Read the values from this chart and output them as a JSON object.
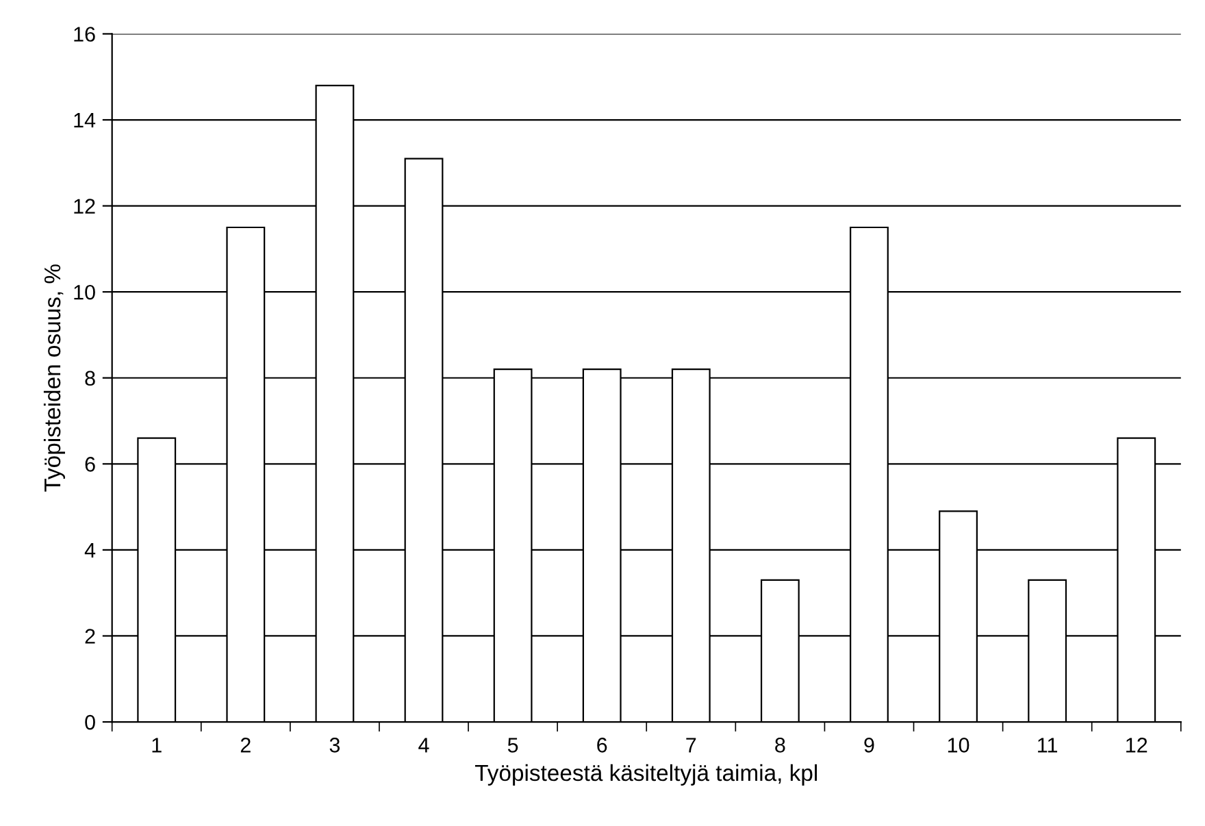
{
  "chart_data": {
    "type": "bar",
    "xlabel": "Työpisteestä käsiteltyjä taimia, kpl",
    "ylabel": "Työpisteiden osuus, %",
    "categories": [
      "1",
      "2",
      "3",
      "4",
      "5",
      "6",
      "7",
      "8",
      "9",
      "10",
      "11",
      "12"
    ],
    "values": [
      6.6,
      11.5,
      14.8,
      13.1,
      8.2,
      8.2,
      8.2,
      3.3,
      11.5,
      4.9,
      3.3,
      6.6
    ],
    "color": "#ffffff",
    "ylim": [
      0,
      16
    ],
    "yticks": [
      0,
      2,
      4,
      6,
      8,
      10,
      12,
      14,
      16
    ],
    "grid": "y"
  }
}
